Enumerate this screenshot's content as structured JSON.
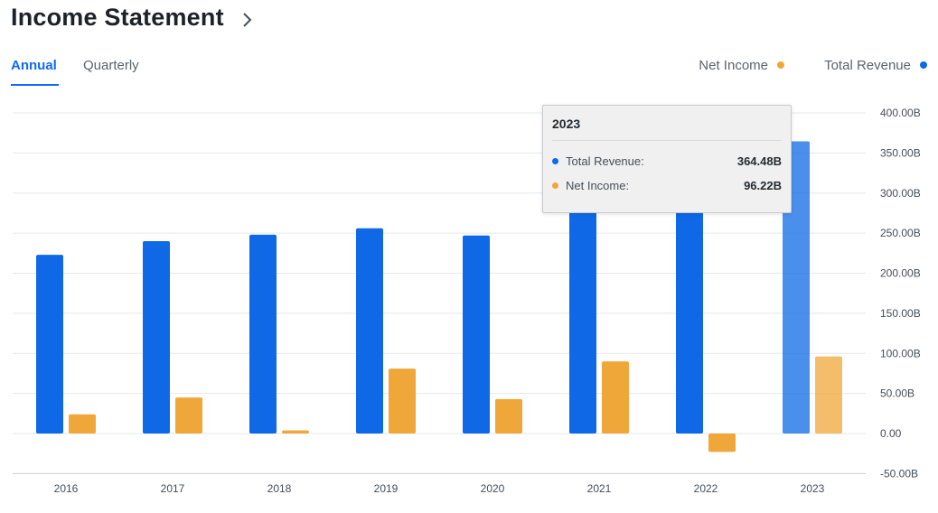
{
  "header": {
    "title": "Income Statement"
  },
  "tabs": [
    {
      "label": "Annual",
      "active": true
    },
    {
      "label": "Quarterly",
      "active": false
    }
  ],
  "legend": [
    {
      "label": "Net Income",
      "color": "#f0a73a"
    },
    {
      "label": "Total Revenue",
      "color": "#0f69e6"
    }
  ],
  "tooltip": {
    "title": "2023",
    "rows": [
      {
        "label": "Total Revenue:",
        "value": "364.48B",
        "color": "#0f69e6"
      },
      {
        "label": "Net Income:",
        "value": "96.22B",
        "color": "#f0a73a"
      }
    ]
  },
  "chart_data": {
    "type": "bar",
    "categories": [
      "2016",
      "2017",
      "2018",
      "2019",
      "2020",
      "2021",
      "2022",
      "2023"
    ],
    "series": [
      {
        "name": "Total Revenue",
        "color": "#0f69e6",
        "values": [
          223,
          240,
          248,
          256,
          247,
          278,
          283,
          364.48
        ]
      },
      {
        "name": "Net Income",
        "color": "#f0a73a",
        "values": [
          24,
          45,
          4,
          81,
          43,
          90,
          -23,
          96.22
        ]
      }
    ],
    "ylim": [
      -50,
      400
    ],
    "yticks": [
      400,
      350,
      300,
      250,
      200,
      150,
      100,
      50,
      0,
      -50
    ],
    "ytick_labels": [
      "400.00B",
      "350.00B",
      "300.00B",
      "250.00B",
      "200.00B",
      "150.00B",
      "100.00B",
      "50.00B",
      "0.00",
      "-50.00B"
    ],
    "highlighted_category": "2023",
    "grid": true,
    "legend_position": "top-right"
  }
}
